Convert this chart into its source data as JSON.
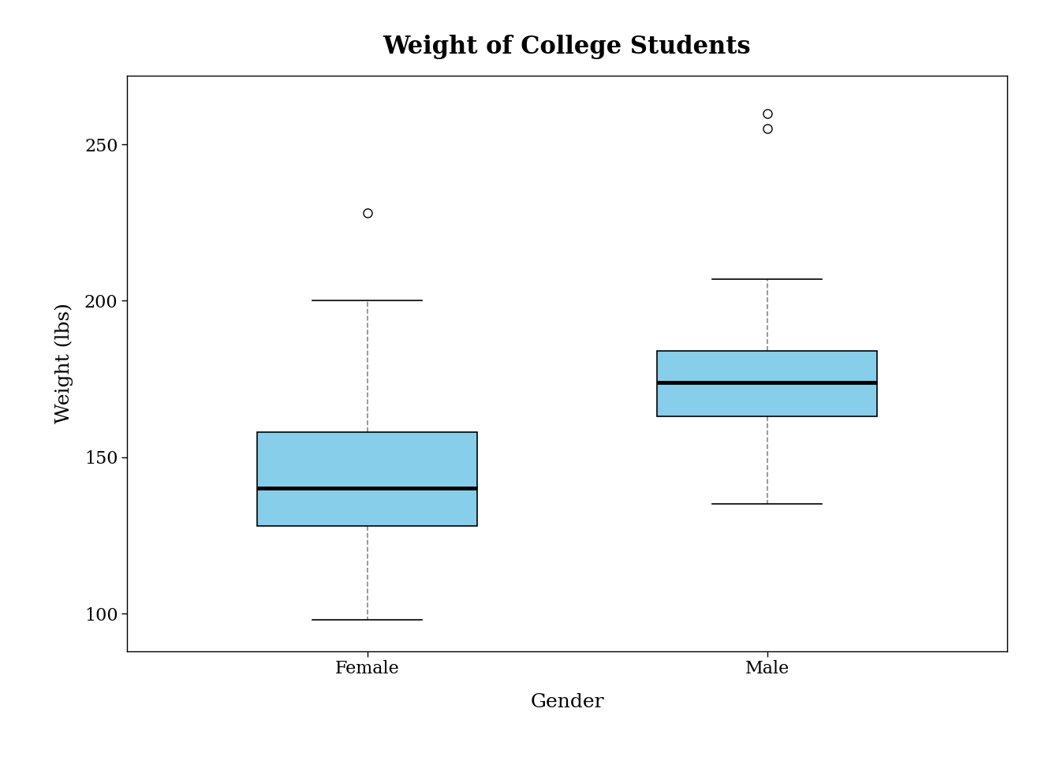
{
  "title": "Weight of College Students",
  "xlabel": "Gender",
  "ylabel": "Weight (lbs)",
  "categories": [
    "Female",
    "Male"
  ],
  "female": {
    "q1": 128,
    "median": 140,
    "q3": 158,
    "whisker_low": 98,
    "whisker_high": 200,
    "outliers": [
      228
    ]
  },
  "male": {
    "q1": 163,
    "median": 174,
    "q3": 184,
    "whisker_low": 135,
    "whisker_high": 207,
    "outliers": [
      255,
      260
    ]
  },
  "box_color": "#87CEEB",
  "median_color": "black",
  "whisker_color": "#888888",
  "outlier_color": "black",
  "background_color": "white",
  "ylim": [
    88,
    272
  ],
  "yticks": [
    100,
    150,
    200,
    250
  ],
  "title_fontsize": 22,
  "label_fontsize": 18,
  "tick_fontsize": 16,
  "box_width": 0.55,
  "linewidth": 1.2,
  "median_linewidth": 3.5,
  "whisker_cap_ratio": 0.5,
  "positions": [
    1,
    2
  ],
  "xlim": [
    0.4,
    2.6
  ]
}
